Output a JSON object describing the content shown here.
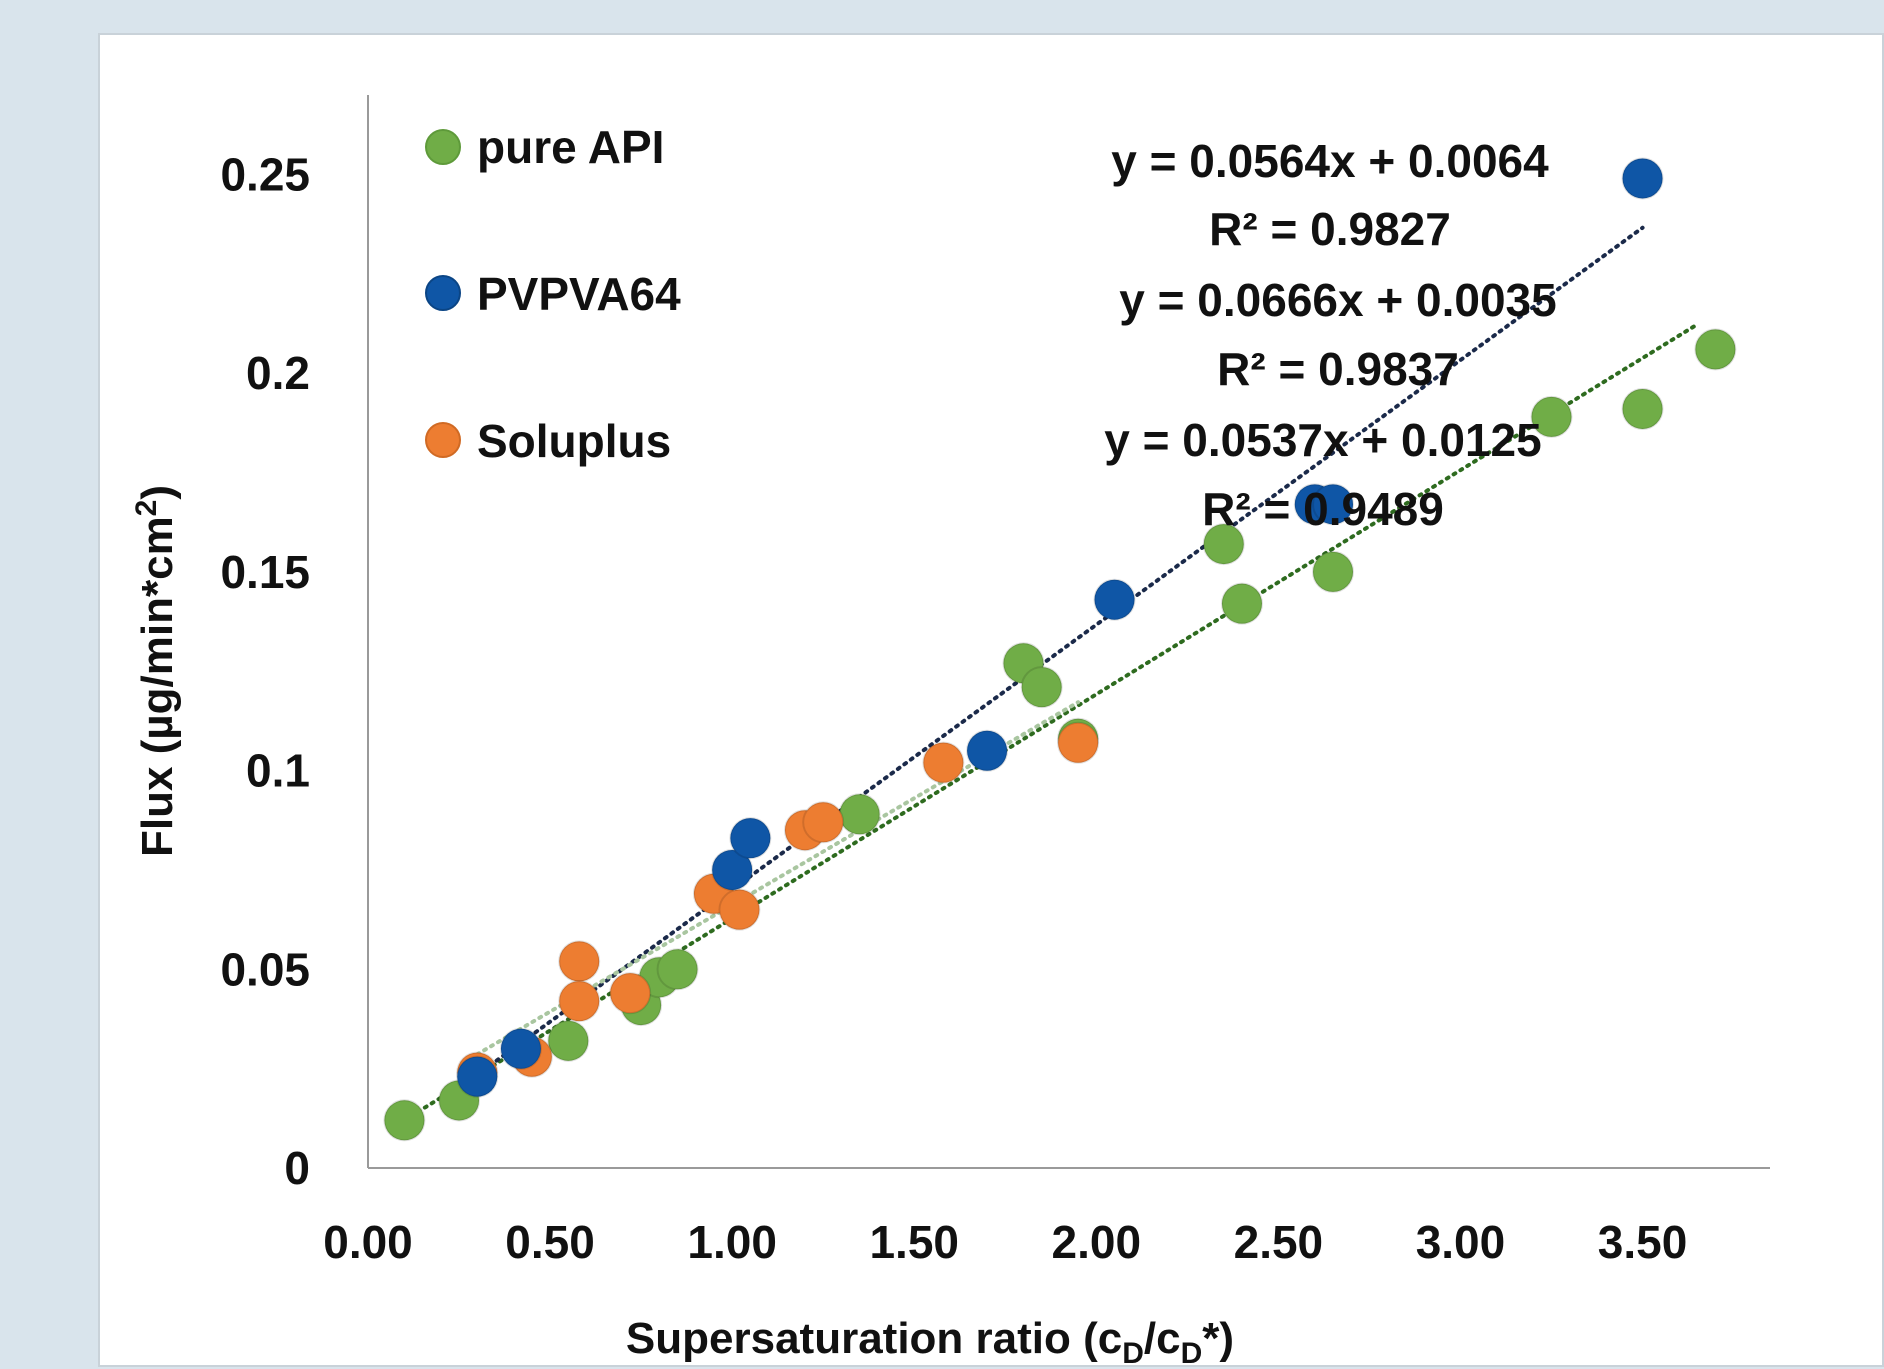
{
  "chart_data": {
    "type": "scatter",
    "title": "",
    "xlabel": "Supersaturation ratio (c",
    "xlabel_sub1": "D",
    "xlabel_mid": "/c",
    "xlabel_sub2": "D",
    "xlabel_end": "*)",
    "ylabel": "Flux (µg/min*cm",
    "ylabel_sup": "2",
    "ylabel_end": ")",
    "xlim": [
      0,
      3.85
    ],
    "ylim": [
      0,
      0.27
    ],
    "xticks": [
      "0.00",
      "0.50",
      "1.00",
      "1.50",
      "2.00",
      "2.50",
      "3.00",
      "3.50"
    ],
    "yticks": [
      "0",
      "0.05",
      "0.1",
      "0.15",
      "0.2",
      "0.25"
    ],
    "grid": false,
    "legend_position": "top-left",
    "series": [
      {
        "name": "pure API",
        "color": "#70ad47",
        "trend_color": "#2e6b1f",
        "equation": "y = 0.0564x + 0.0064",
        "r2": "R² = 0.9827",
        "slope": 0.0564,
        "intercept": 0.0064,
        "trend_x": [
          0.1,
          3.65
        ],
        "points": [
          [
            0.1,
            0.012
          ],
          [
            0.25,
            0.017
          ],
          [
            0.55,
            0.032
          ],
          [
            0.75,
            0.041
          ],
          [
            0.8,
            0.048
          ],
          [
            0.85,
            0.05
          ],
          [
            1.35,
            0.089
          ],
          [
            1.8,
            0.127
          ],
          [
            1.85,
            0.121
          ],
          [
            1.95,
            0.108
          ],
          [
            2.35,
            0.157
          ],
          [
            2.4,
            0.142
          ],
          [
            2.65,
            0.15
          ],
          [
            3.25,
            0.189
          ],
          [
            3.5,
            0.191
          ],
          [
            3.7,
            0.206
          ]
        ]
      },
      {
        "name": "PVPVA64",
        "color": "#0f56a6",
        "trend_color": "#1b2a4a",
        "equation": "y = 0.0666x + 0.0035",
        "r2": "R² = 0.9837",
        "slope": 0.0666,
        "intercept": 0.0035,
        "trend_x": [
          0.3,
          3.5
        ],
        "points": [
          [
            0.3,
            0.023
          ],
          [
            0.42,
            0.03
          ],
          [
            1.0,
            0.075
          ],
          [
            1.05,
            0.083
          ],
          [
            1.7,
            0.105
          ],
          [
            2.05,
            0.143
          ],
          [
            2.6,
            0.167
          ],
          [
            2.65,
            0.167
          ],
          [
            3.5,
            0.249
          ]
        ]
      },
      {
        "name": "Soluplus",
        "color": "#ed7d31",
        "trend_color": "#a9c6a0",
        "equation": "y = 0.0537x + 0.0125",
        "r2": "R² = 0.9489",
        "slope": 0.0537,
        "intercept": 0.0125,
        "trend_x": [
          0.3,
          1.95
        ],
        "points": [
          [
            0.3,
            0.024
          ],
          [
            0.45,
            0.028
          ],
          [
            0.58,
            0.052
          ],
          [
            0.58,
            0.042
          ],
          [
            0.72,
            0.044
          ],
          [
            0.95,
            0.069
          ],
          [
            1.02,
            0.065
          ],
          [
            1.2,
            0.085
          ],
          [
            1.25,
            0.087
          ],
          [
            1.58,
            0.102
          ],
          [
            1.95,
            0.107
          ]
        ]
      }
    ]
  }
}
